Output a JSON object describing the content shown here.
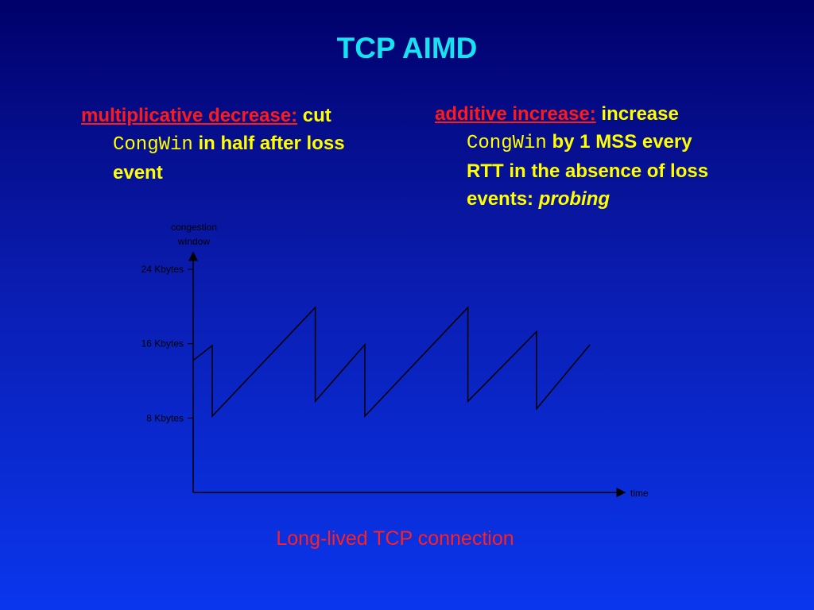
{
  "slide": {
    "title": "TCP AIMD",
    "left_bullet": {
      "term": "multiplicative decrease:",
      "text1": " cut",
      "code": "CongWin",
      "text2": " in half after loss",
      "text3": "event"
    },
    "right_bullet": {
      "term": "additive increase:",
      "text1": " increase",
      "code": "CongWin",
      "text2": " by 1 MSS every",
      "text3": "RTT in the absence of loss",
      "text4": "events: ",
      "emph": "probing"
    },
    "caption": "Long-lived TCP connection"
  },
  "chart_data": {
    "type": "line",
    "ylabel_line1": "congestion",
    "ylabel_line2": "window",
    "xlabel": "time",
    "yticks": [
      "24 Kbytes",
      "16 Kbytes",
      "8 Kbytes"
    ],
    "ytick_values": [
      24,
      16,
      8
    ],
    "grid": false,
    "series": [
      {
        "points": [
          [
            0.0,
            14.2
          ],
          [
            0.5,
            15.8
          ],
          [
            0.5,
            8.2
          ],
          [
            3.2,
            19.9
          ],
          [
            3.2,
            9.8
          ],
          [
            4.5,
            15.9
          ],
          [
            4.5,
            8.2
          ],
          [
            7.2,
            19.9
          ],
          [
            7.2,
            9.8
          ],
          [
            9.0,
            17.3
          ],
          [
            9.0,
            9.0
          ],
          [
            10.4,
            15.9
          ]
        ]
      }
    ],
    "xlim": [
      0,
      10.9
    ],
    "ylim": [
      0,
      25.8
    ]
  }
}
